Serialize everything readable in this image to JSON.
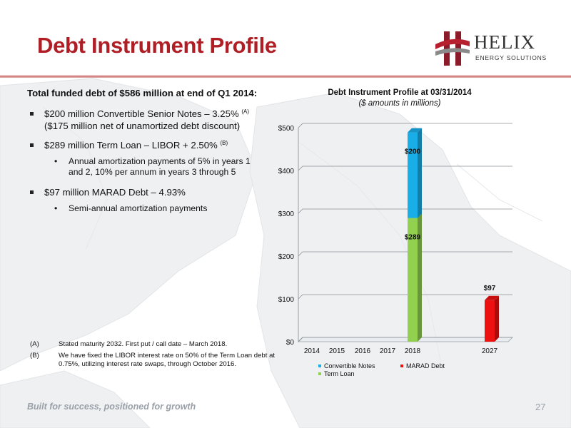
{
  "slide": {
    "title": "Debt Instrument Profile",
    "footer_tagline": "Built for success, positioned for growth",
    "page_number": "27"
  },
  "logo": {
    "name": "HELIX",
    "tagline": "ENERGY SOLUTIONS"
  },
  "summary": {
    "lead": "Total funded debt of $586 million at end of Q1 2014:",
    "items": [
      {
        "text": "$200 million Convertible Senior Notes – 3.25%",
        "note": "(A)",
        "text2": "($175 million net of unamortized debt discount)"
      },
      {
        "text": "$289 million Term Loan – LIBOR + 2.50%",
        "note": "(B)",
        "sub": "Annual amortization payments of 5% in years 1 and 2, 10% per annum in years 3 through 5"
      },
      {
        "text": "$97 million MARAD Debt – 4.93%",
        "sub": "Semi-annual amortization payments"
      }
    ]
  },
  "footnotes": [
    {
      "mark": "(A)",
      "text": "Stated maturity 2032. First put / call date – March 2018."
    },
    {
      "mark": "(B)",
      "text": "We have fixed the LIBOR interest rate on 50% of the Term Loan debt at 0.75%, utilizing interest rate swaps, through October 2016."
    }
  ],
  "chart_data": {
    "type": "bar",
    "stacked": true,
    "title": "Debt Instrument Profile at 03/31/2014",
    "subtitle": "($ amounts in millions)",
    "categories": [
      "2014",
      "2015",
      "2016",
      "2017",
      "2018",
      "2027"
    ],
    "series": [
      {
        "name": "Term Loan",
        "color": "#92d050",
        "values": [
          0,
          0,
          0,
          0,
          289,
          0
        ]
      },
      {
        "name": "Convertible Notes",
        "color": "#1aaee8",
        "values": [
          0,
          0,
          0,
          0,
          200,
          0
        ]
      },
      {
        "name": "MARAD Debt",
        "color": "#ee1111",
        "values": [
          0,
          0,
          0,
          0,
          0,
          97
        ]
      }
    ],
    "legend_order": [
      "Convertible Notes",
      "MARAD Debt",
      "Term Loan"
    ],
    "data_labels": [
      {
        "category": "2018",
        "series": "Convertible Notes",
        "text": "$200"
      },
      {
        "category": "2018",
        "series": "Term Loan",
        "text": "$289"
      },
      {
        "category": "2027",
        "series": "MARAD Debt",
        "text": "$97"
      }
    ],
    "ylim": [
      0,
      500
    ],
    "yticks": [
      0,
      100,
      200,
      300,
      400,
      500
    ],
    "ytick_labels": [
      "$0",
      "$100",
      "$200",
      "$300",
      "$400",
      "$500"
    ],
    "grid": true,
    "legend_position": "bottom"
  }
}
